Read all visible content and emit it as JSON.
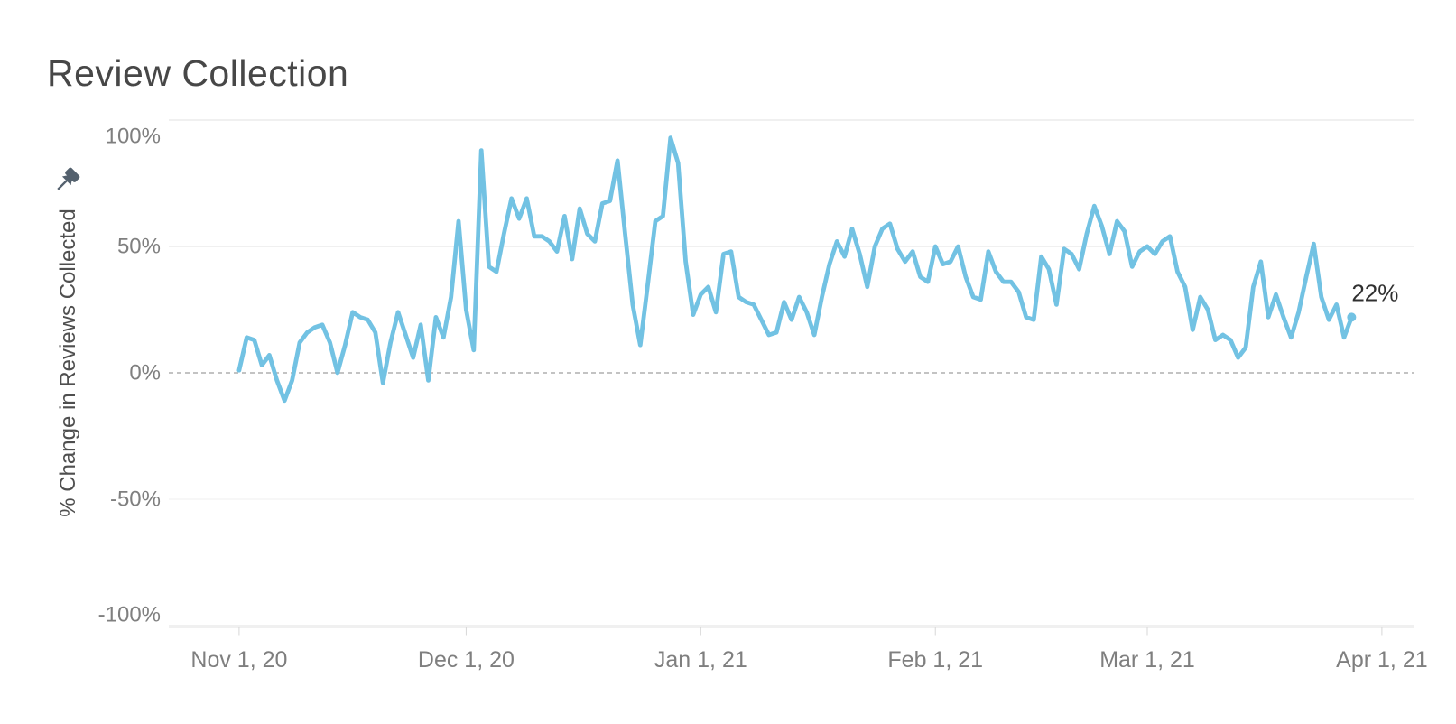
{
  "title": "Review Collection",
  "annotation": {
    "end_label": "22%"
  },
  "icons": {
    "pushpin": "pushpin-icon"
  },
  "colors": {
    "line": "#72C2E3",
    "title_text": "#474747",
    "axis_tick_text": "#7F7F7F",
    "axis_title_text": "#4F4F4F",
    "gridline": "#E2E2E2",
    "gridline_faint": "#EFEFEF",
    "zero_line": "#AFAFAF",
    "tick_mark": "#D7D7D7",
    "annotation_text": "#303030",
    "pin": "#54616E",
    "background": "#FFFFFF"
  },
  "y_axis": {
    "title": "% Change in Reviews Collected",
    "ticks": [
      {
        "label": "100%",
        "value": 100,
        "line": "solid"
      },
      {
        "label": "50%",
        "value": 50,
        "line": "solid"
      },
      {
        "label": "0%",
        "value": 0,
        "line": "dashed"
      },
      {
        "label": "-50%",
        "value": -50,
        "line": "faint"
      },
      {
        "label": "-100%",
        "value": -100,
        "line": "solid"
      }
    ]
  },
  "x_axis": {
    "ticks": [
      {
        "label": "Nov 1, 20",
        "day": 0
      },
      {
        "label": "Dec 1, 20",
        "day": 30
      },
      {
        "label": "Jan 1, 21",
        "day": 61
      },
      {
        "label": "Feb 1, 21",
        "day": 92
      },
      {
        "label": "Mar 1, 21",
        "day": 120
      },
      {
        "label": "Apr 1, 21",
        "day": 151
      }
    ]
  },
  "chart_data": {
    "type": "line",
    "title": "Review Collection",
    "xlabel": "",
    "ylabel": "% Change in Reviews Collected",
    "unit": "percent",
    "frequency": "daily",
    "start_date": "Nov 1, 2020",
    "end_date": "Mar 28, 2021",
    "ylim": [
      -100,
      100
    ],
    "grid": "horizontal-only",
    "legend": "none",
    "end_annotation": "22%",
    "x_tick_labels": [
      "Nov 1, 20",
      "Dec 1, 20",
      "Jan 1, 21",
      "Feb 1, 21",
      "Mar 1, 21",
      "Apr 1, 21"
    ],
    "values": [
      1,
      14,
      13,
      3,
      7,
      -3,
      -11,
      -3,
      12,
      16,
      18,
      19,
      12,
      0,
      11,
      24,
      22,
      21,
      16,
      -4,
      12,
      24,
      15,
      6,
      19,
      -3,
      22,
      14,
      30,
      60,
      25,
      9,
      88,
      42,
      40,
      55,
      69,
      61,
      69,
      54,
      54,
      52,
      48,
      62,
      45,
      65,
      55,
      52,
      67,
      68,
      84,
      55,
      27,
      11,
      35,
      60,
      62,
      93,
      83,
      44,
      23,
      31,
      34,
      24,
      47,
      48,
      30,
      28,
      27,
      21,
      15,
      16,
      28,
      21,
      30,
      24,
      15,
      30,
      43,
      52,
      46,
      57,
      47,
      34,
      50,
      57,
      59,
      49,
      44,
      48,
      38,
      36,
      50,
      43,
      44,
      50,
      38,
      30,
      29,
      48,
      40,
      36,
      36,
      32,
      22,
      21,
      46,
      41,
      27,
      49,
      47,
      41,
      55,
      66,
      58,
      47,
      60,
      56,
      42,
      48,
      50,
      47,
      52,
      54,
      40,
      34,
      17,
      30,
      25,
      13,
      15,
      13,
      6,
      10,
      34,
      44,
      22,
      31,
      22,
      14,
      24,
      38,
      51,
      30,
      21,
      27,
      14,
      22
    ]
  }
}
